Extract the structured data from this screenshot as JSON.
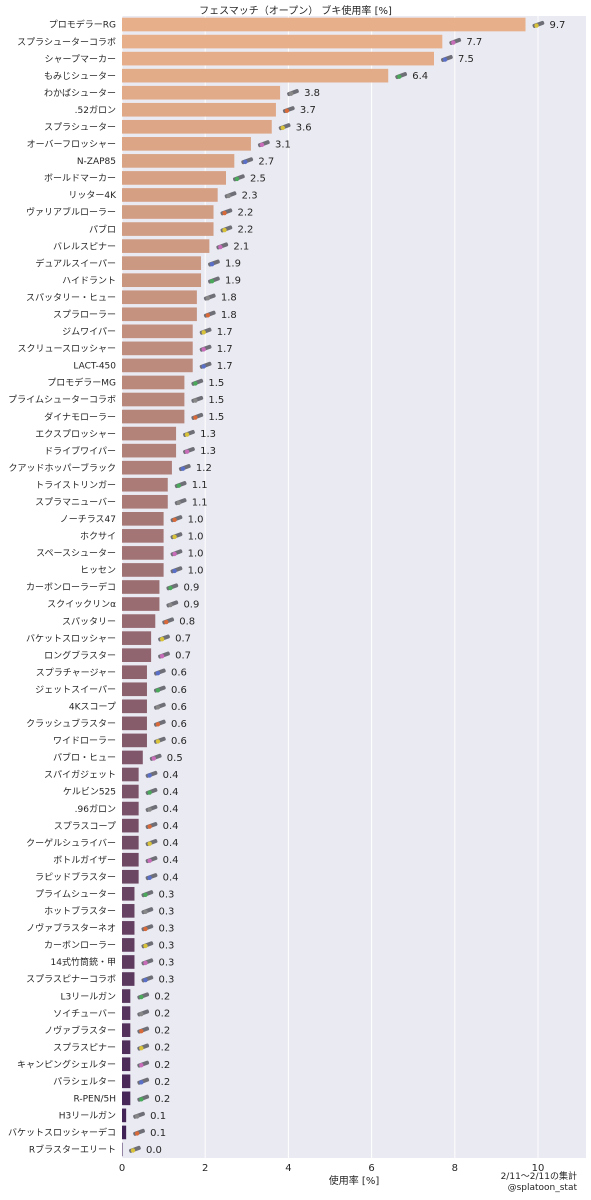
{
  "chart_data": {
    "type": "bar",
    "orientation": "horizontal",
    "title": "フェスマッチ（オープン） ブキ使用率 [%]",
    "xlabel": "使用率 [%]",
    "ylabel": "",
    "xlim": [
      0,
      11.2
    ],
    "x_ticks": [
      0,
      2,
      4,
      6,
      8,
      10
    ],
    "grid": true,
    "footnote": [
      "2/11〜2/11の集計",
      "@splatoon_stat"
    ],
    "colors": {
      "plot_bg": "#eaeaf2",
      "grid": "#ffffff",
      "bar_start": "#e8b08a",
      "bar_end": "#3e1f55"
    },
    "categories": [
      "プロモデラーRG",
      "スプラシューターコラボ",
      "シャープマーカー",
      "もみじシューター",
      "わかばシューター",
      ".52ガロン",
      "スプラシューター",
      "オーバーフロッシャー",
      "N-ZAP85",
      "ボールドマーカー",
      "リッター4K",
      "ヴァリアブルローラー",
      "パブロ",
      "バレルスピナー",
      "デュアルスイーパー",
      "ハイドラント",
      "スパッタリー・ヒュー",
      "スプラローラー",
      "ジムワイパー",
      "スクリュースロッシャー",
      "LACT-450",
      "プロモデラーMG",
      "プライムシューターコラボ",
      "ダイナモローラー",
      "エクスプロッシャー",
      "ドライブワイパー",
      "クアッドホッパーブラック",
      "トライストリンガー",
      "スプラマニューバー",
      "ノーチラス47",
      "ホクサイ",
      "スペースシューター",
      "ヒッセン",
      "カーボンローラーデコ",
      "スクイックリンα",
      "スパッタリー",
      "バケットスロッシャー",
      "ロングブラスター",
      "スプラチャージャー",
      "ジェットスイーパー",
      "4Kスコープ",
      "クラッシュブラスター",
      "ワイドローラー",
      "パブロ・ヒュー",
      "スパイガジェット",
      "ケルビン525",
      ".96ガロン",
      "スプラスコープ",
      "クーゲルシュライバー",
      "ボトルガイザー",
      "ラピッドブラスター",
      "プライムシューター",
      "ホットブラスター",
      "ノヴァブラスターネオ",
      "カーボンローラー",
      "14式竹筒銃・甲",
      "スプラスピナーコラボ",
      "L3リールガン",
      "ソイチューバー",
      "ノヴァブラスター",
      "スプラスピナー",
      "キャンピングシェルター",
      "パラシェルター",
      "R-PEN/5H",
      "H3リールガン",
      "バケットスロッシャーデコ",
      "Rブラスターエリート"
    ],
    "values": [
      9.7,
      7.7,
      7.5,
      6.4,
      3.8,
      3.7,
      3.6,
      3.1,
      2.7,
      2.5,
      2.3,
      2.2,
      2.2,
      2.1,
      1.9,
      1.9,
      1.8,
      1.8,
      1.7,
      1.7,
      1.7,
      1.5,
      1.5,
      1.5,
      1.3,
      1.3,
      1.2,
      1.1,
      1.1,
      1.0,
      1.0,
      1.0,
      1.0,
      0.9,
      0.9,
      0.8,
      0.7,
      0.7,
      0.6,
      0.6,
      0.6,
      0.6,
      0.6,
      0.5,
      0.4,
      0.4,
      0.4,
      0.4,
      0.4,
      0.4,
      0.4,
      0.3,
      0.3,
      0.3,
      0.3,
      0.3,
      0.3,
      0.2,
      0.2,
      0.2,
      0.2,
      0.2,
      0.2,
      0.2,
      0.1,
      0.1,
      0.0
    ],
    "value_labels": [
      "9.7",
      "7.7",
      "7.5",
      "6.4",
      "3.8",
      "3.7",
      "3.6",
      "3.1",
      "2.7",
      "2.5",
      "2.3",
      "2.2",
      "2.2",
      "2.1",
      "1.9",
      "1.9",
      "1.8",
      "1.8",
      "1.7",
      "1.7",
      "1.7",
      "1.5",
      "1.5",
      "1.5",
      "1.3",
      "1.3",
      "1.2",
      "1.1",
      "1.1",
      "1.0",
      "1.0",
      "1.0",
      "1.0",
      "0.9",
      "0.9",
      "0.8",
      "0.7",
      "0.7",
      "0.6",
      "0.6",
      "0.6",
      "0.6",
      "0.6",
      "0.5",
      "0.4",
      "0.4",
      "0.4",
      "0.4",
      "0.4",
      "0.4",
      "0.4",
      "0.3",
      "0.3",
      "0.3",
      "0.3",
      "0.3",
      "0.3",
      "0.2",
      "0.2",
      "0.2",
      "0.2",
      "0.2",
      "0.2",
      "0.2",
      "0.1",
      "0.1",
      "0.0"
    ]
  }
}
